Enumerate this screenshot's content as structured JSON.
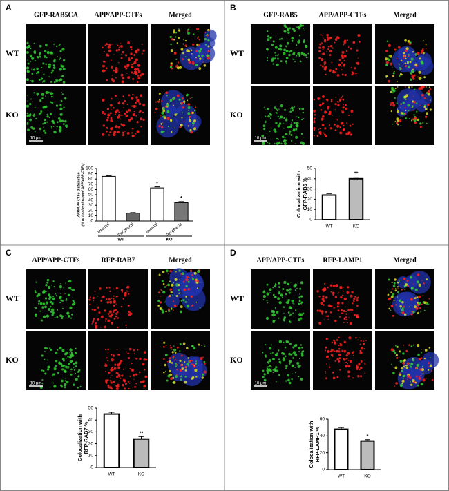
{
  "panels": [
    {
      "letter": "A",
      "columns": [
        "GFP-RAB5CA",
        "APP/APP-CTFs",
        "Merged"
      ],
      "rows": [
        "WT",
        "KO"
      ],
      "scale_bar": "10 μm",
      "chart": {
        "type": "bar",
        "ylabel": [
          "APP/APP-CTFs distribution",
          "(% of total endosomal APP/APP-CTFs)"
        ],
        "categories": [
          "Internal",
          "Peripheral",
          "Internal",
          "Peripheral"
        ],
        "groups": [
          "WT",
          "KO"
        ],
        "values": [
          85,
          15,
          63,
          35
        ],
        "errors": [
          1,
          1,
          2,
          2
        ],
        "colors": [
          "#ffffff",
          "#666666",
          "#ffffff",
          "#777777"
        ],
        "significance": [
          null,
          null,
          "*",
          "*"
        ],
        "ylim": [
          0,
          100
        ],
        "yticks": [
          0,
          10,
          20,
          30,
          40,
          50,
          60,
          70,
          80,
          90,
          100
        ]
      }
    },
    {
      "letter": "B",
      "columns": [
        "GFP-RAB5",
        "APP/APP-CTFs",
        "Merged"
      ],
      "rows": [
        "WT",
        "KO"
      ],
      "scale_bar": "10 μm",
      "chart": {
        "type": "bar",
        "ylabel": [
          "Colocalization with",
          "GFP-RAB5 %"
        ],
        "categories": [
          "WT",
          "KO"
        ],
        "values": [
          24,
          40
        ],
        "errors": [
          1.5,
          1.5
        ],
        "colors": [
          "#ffffff",
          "#bbbbbb"
        ],
        "significance": [
          null,
          "**"
        ],
        "ylim": [
          0,
          50
        ],
        "yticks": [
          0,
          10,
          20,
          30,
          40,
          50
        ]
      }
    },
    {
      "letter": "C",
      "columns": [
        "APP/APP-CTFs",
        "RFP-RAB7",
        "Merged"
      ],
      "rows": [
        "WT",
        "KO"
      ],
      "scale_bar": "10 μm",
      "chart": {
        "type": "bar",
        "ylabel": [
          "Colocalization with",
          "RFP-RAB7 %"
        ],
        "categories": [
          "WT",
          "KO"
        ],
        "values": [
          45,
          24
        ],
        "errors": [
          1.5,
          2
        ],
        "colors": [
          "#ffffff",
          "#bbbbbb"
        ],
        "significance": [
          null,
          "**"
        ],
        "ylim": [
          0,
          50
        ],
        "yticks": [
          0,
          10,
          20,
          30,
          40,
          50
        ]
      }
    },
    {
      "letter": "D",
      "columns": [
        "APP/APP-CTFs",
        "RFP-LAMP1",
        "Merged"
      ],
      "rows": [
        "WT",
        "KO"
      ],
      "scale_bar": "10 μm",
      "chart": {
        "type": "bar",
        "ylabel": [
          "Colocalization with",
          "RFP-LAMP1 %"
        ],
        "categories": [
          "WT",
          "KO"
        ],
        "values": [
          48,
          34
        ],
        "errors": [
          2,
          1.5
        ],
        "colors": [
          "#ffffff",
          "#bbbbbb"
        ],
        "significance": [
          null,
          "*"
        ],
        "ylim": [
          0,
          60
        ],
        "yticks": [
          0,
          20,
          40,
          60
        ]
      }
    }
  ]
}
